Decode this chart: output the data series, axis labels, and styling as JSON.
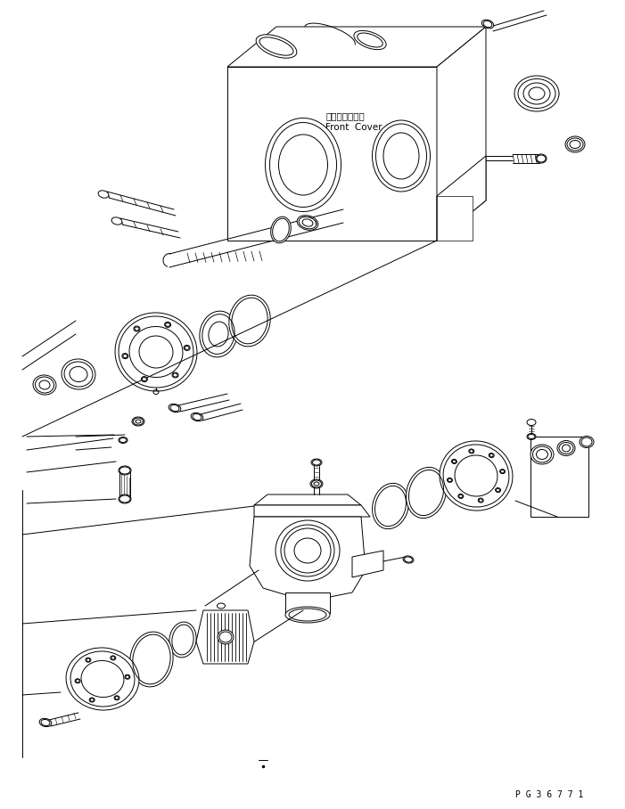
{
  "bg_color": "#ffffff",
  "line_color": "#000000",
  "label_japanese": "フロントカバー",
  "label_english": "Front  Cover",
  "part_number": "P G 3 6 7 7 1",
  "fig_width": 7.01,
  "fig_height": 9.08,
  "dpi": 100
}
